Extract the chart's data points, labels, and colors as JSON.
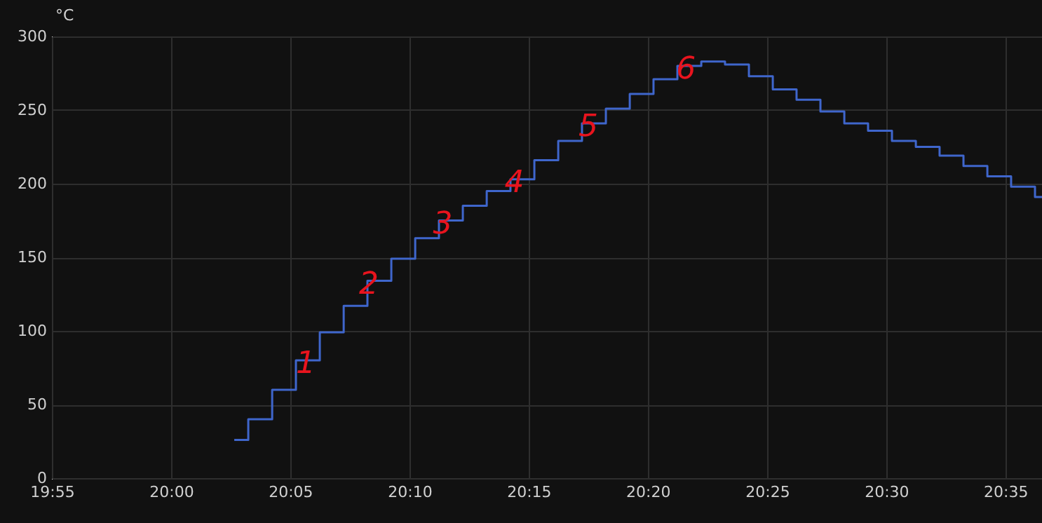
{
  "chart_data": {
    "type": "step",
    "ylabel": "°C",
    "x": [
      20.0442,
      20.054,
      20.0707,
      20.0873,
      20.104,
      20.1207,
      20.1373,
      20.154,
      20.1707,
      20.1873,
      20.204,
      20.2207,
      20.2373,
      20.254,
      20.2707,
      20.2873,
      20.304,
      20.3207,
      20.3373,
      20.354,
      20.3707,
      20.3873,
      20.404,
      20.4207,
      20.4373,
      20.454,
      20.4707,
      20.4873,
      20.504,
      20.5207,
      20.5373,
      20.554,
      20.5707,
      20.5873,
      20.604,
      20.6089
    ],
    "series": [
      {
        "color": "#3f66cc",
        "values": [
          26,
          40,
          60,
          80,
          99,
          117,
          134,
          149,
          163,
          175,
          185,
          195,
          203,
          216,
          229,
          241,
          251,
          261,
          271,
          280,
          283,
          281,
          273,
          264,
          257,
          249,
          241,
          236,
          229,
          225,
          219,
          212,
          205,
          198,
          191,
          191
        ]
      }
    ],
    "xlim": [
      19.9167,
      20.6089
    ],
    "xticks": [
      {
        "value": 19.9167,
        "label": "19:55"
      },
      {
        "value": 20.0,
        "label": "20:00"
      },
      {
        "value": 20.0833,
        "label": "20:05"
      },
      {
        "value": 20.1667,
        "label": "20:10"
      },
      {
        "value": 20.25,
        "label": "20:15"
      },
      {
        "value": 20.3333,
        "label": "20:20"
      },
      {
        "value": 20.4167,
        "label": "20:25"
      },
      {
        "value": 20.5,
        "label": "20:30"
      },
      {
        "value": 20.5833,
        "label": "20:35"
      }
    ],
    "ylim": [
      0,
      300
    ],
    "yticks": [
      0,
      50,
      100,
      150,
      200,
      250,
      300
    ],
    "grid": true,
    "marker": "none",
    "line_style": "solid",
    "annotations": [
      {
        "text": "1",
        "x": 20.0942,
        "y": 80
      },
      {
        "text": "2",
        "x": 20.1383,
        "y": 134
      },
      {
        "text": "3",
        "x": 20.19,
        "y": 175
      },
      {
        "text": "4",
        "x": 20.24,
        "y": 203
      },
      {
        "text": "5",
        "x": 20.2917,
        "y": 241
      },
      {
        "text": "6",
        "x": 20.36,
        "y": 280
      }
    ]
  }
}
